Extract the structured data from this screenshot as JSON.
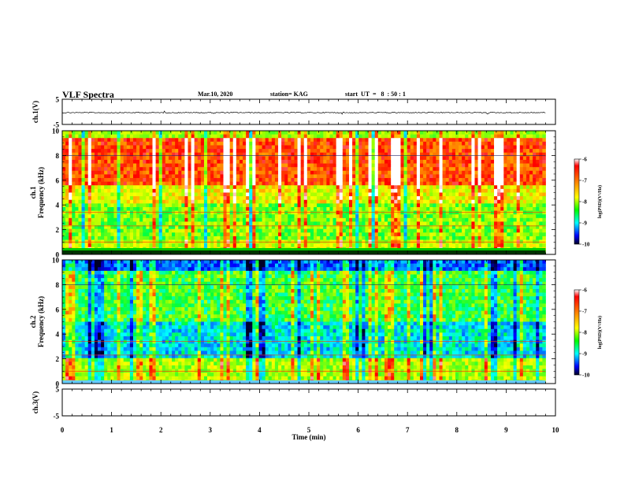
{
  "header": {
    "title": "VLF Spectra",
    "date": "Mar.10, 2020",
    "station": "station= KAG",
    "start_ut": "start  UT  =   8  : 50 : 1"
  },
  "chart_data": [
    {
      "type": "line",
      "panel": "ch1-waveform",
      "ylabel": "ch.1(V)",
      "ylim": [
        -5,
        5
      ],
      "yticks": [
        "5",
        "-5"
      ],
      "xlim": [
        0,
        10
      ],
      "series_note": "",
      "values": []
    },
    {
      "type": "heatmap",
      "panel": "ch1-spectrogram",
      "ylabel": "ch.1\nFrequency (kHz)",
      "ylabel_line1": "ch.1",
      "ylabel_line2": "Frequency  (kHz)",
      "ylim": [
        0,
        10
      ],
      "yticks": [
        "0",
        "2",
        "4",
        "6",
        "8",
        "10"
      ],
      "xlim": [
        0,
        10
      ],
      "colorbar": {
        "label": "log(PSD)(V²/Hz)",
        "range": [
          -10,
          -6
        ],
        "ticks": [
          "-6",
          "-7",
          "-8",
          "-9",
          "-10"
        ]
      }
    },
    {
      "type": "heatmap",
      "panel": "ch2-spectrogram",
      "ylabel_line1": "ch.2",
      "ylabel_line2": "Frequency  (kHz)",
      "ylim": [
        0,
        10
      ],
      "yticks": [
        "0",
        "2",
        "4",
        "6",
        "8",
        "10"
      ],
      "xlim": [
        0,
        10
      ],
      "colorbar": {
        "label": "log(PSD)(V²/Hz)",
        "range": [
          -10,
          -6
        ],
        "ticks": [
          "-6",
          "-7",
          "-8",
          "-9",
          "-10"
        ]
      }
    },
    {
      "type": "line",
      "panel": "ch3-waveform",
      "ylabel": "ch.3(V)",
      "ylim": [
        -5,
        5
      ],
      "yticks": [
        "5",
        "-5"
      ],
      "xlim": [
        0,
        10
      ],
      "values": []
    }
  ],
  "xaxis": {
    "label": "Time  (min)",
    "ticks": [
      "0",
      "1",
      "2",
      "3",
      "4",
      "5",
      "6",
      "7",
      "8",
      "9",
      "10"
    ]
  },
  "colors": {
    "high": "#ff0000",
    "mid": "#00ff00",
    "low": "#0000ff",
    "min": "#000033"
  }
}
